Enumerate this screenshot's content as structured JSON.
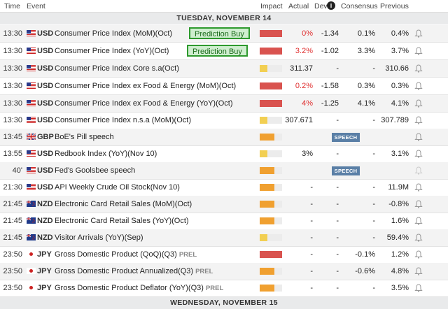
{
  "header": {
    "time": "Time",
    "event": "Event",
    "impact": "Impact",
    "actual": "Actual",
    "dev": "Dev",
    "info_icon": "info-icon",
    "consensus": "Consensus",
    "previous": "Previous"
  },
  "days": {
    "first": "TUESDAY, NOVEMBER 14",
    "second": "WEDNESDAY, NOVEMBER 15"
  },
  "annotations": {
    "prediction": "Prediction Buy"
  },
  "speech_label": "SPEECH",
  "rows": [
    {
      "time": "13:30",
      "cur": "USD",
      "event": "Consumer Price Index (MoM)(Oct)",
      "actual": "0%",
      "dev": "-1.34",
      "cons": "0.1%",
      "prev": "0.4%"
    },
    {
      "time": "13:30",
      "cur": "USD",
      "event": "Consumer Price Index (YoY)(Oct)",
      "actual": "3.2%",
      "dev": "-1.02",
      "cons": "3.3%",
      "prev": "3.7%"
    },
    {
      "time": "13:30",
      "cur": "USD",
      "event": "Consumer Price Index Core s.a(Oct)",
      "actual": "311.37",
      "dev": "-",
      "cons": "-",
      "prev": "310.66"
    },
    {
      "time": "13:30",
      "cur": "USD",
      "event": "Consumer Price Index ex Food & Energy (MoM)(Oct)",
      "actual": "0.2%",
      "dev": "-1.58",
      "cons": "0.3%",
      "prev": "0.3%"
    },
    {
      "time": "13:30",
      "cur": "USD",
      "event": "Consumer Price Index ex Food & Energy (YoY)(Oct)",
      "actual": "4%",
      "dev": "-1.25",
      "cons": "4.1%",
      "prev": "4.1%"
    },
    {
      "time": "13:30",
      "cur": "USD",
      "event": "Consumer Price Index n.s.a (MoM)(Oct)",
      "actual": "307.671",
      "dev": "-",
      "cons": "-",
      "prev": "307.789"
    },
    {
      "time": "13:45",
      "cur": "GBP",
      "event": "BoE's Pill speech",
      "actual": "",
      "dev": "",
      "cons": "",
      "prev": ""
    },
    {
      "time": "13:55",
      "cur": "USD",
      "event": "Redbook Index (YoY)(Nov 10)",
      "actual": "3%",
      "dev": "-",
      "cons": "-",
      "prev": "3.1%"
    },
    {
      "time": "40'",
      "cur": "USD",
      "event": "Fed's Goolsbee speech",
      "actual": "",
      "dev": "",
      "cons": "",
      "prev": ""
    },
    {
      "time": "21:30",
      "cur": "USD",
      "event": "API Weekly Crude Oil Stock(Nov 10)",
      "actual": "-",
      "dev": "-",
      "cons": "-",
      "prev": "11.9M"
    },
    {
      "time": "21:45",
      "cur": "NZD",
      "event": "Electronic Card Retail Sales (MoM)(Oct)",
      "actual": "-",
      "dev": "-",
      "cons": "-",
      "prev": "-0.8%"
    },
    {
      "time": "21:45",
      "cur": "NZD",
      "event": "Electronic Card Retail Sales (YoY)(Oct)",
      "actual": "-",
      "dev": "-",
      "cons": "-",
      "prev": "1.6%"
    },
    {
      "time": "21:45",
      "cur": "NZD",
      "event": "Visitor Arrivals (YoY)(Sep)",
      "actual": "-",
      "dev": "-",
      "cons": "-",
      "prev": "59.4%"
    },
    {
      "time": "23:50",
      "cur": "JPY",
      "event": "Gross Domestic Product (QoQ)(Q3)",
      "prel": "PREL",
      "actual": "-",
      "dev": "-",
      "cons": "-0.1%",
      "prev": "1.2%"
    },
    {
      "time": "23:50",
      "cur": "JPY",
      "event": "Gross Domestic Product Annualized(Q3)",
      "prel": "PREL",
      "actual": "-",
      "dev": "-",
      "cons": "-0.6%",
      "prev": "4.8%"
    },
    {
      "time": "23:50",
      "cur": "JPY",
      "event": "Gross Domestic Product Deflator (YoY)(Q3)",
      "prel": "PREL",
      "actual": "-",
      "dev": "-",
      "cons": "-",
      "prev": "3.5%"
    }
  ]
}
